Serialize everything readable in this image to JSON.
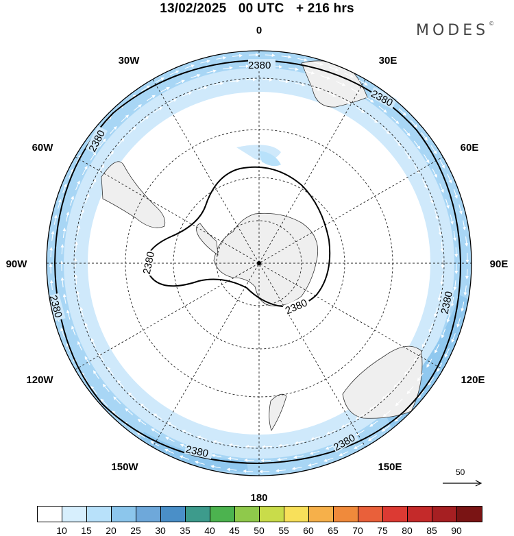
{
  "header": {
    "date": "13/02/2025",
    "time": "00 UTC",
    "lead": "+ 216 hrs"
  },
  "logo": {
    "text": "MODES",
    "mark": "©"
  },
  "map": {
    "projection": "south-polar-stereographic",
    "longitude_labels": {
      "lon_0": "0",
      "lon_30e": "30E",
      "lon_60e": "60E",
      "lon_90e": "90E",
      "lon_120e": "120E",
      "lon_150e": "150E",
      "lon_180": "180",
      "lon_150w": "150W",
      "lon_120w": "120W",
      "lon_90w": "90W",
      "lon_60w": "60W",
      "lon_30w": "30W"
    },
    "contour_value": "2380",
    "land_color": "#efefef",
    "coastline_color": "#333333",
    "wind_shading_colors": [
      "#cfe9fb",
      "#a8d6f5",
      "#90c8ef"
    ]
  },
  "vector_reference": {
    "value": "50",
    "icon": "arrow-right-icon"
  },
  "colorbar": {
    "ticks": [
      "10",
      "15",
      "20",
      "25",
      "30",
      "35",
      "40",
      "45",
      "50",
      "55",
      "60",
      "65",
      "70",
      "75",
      "80",
      "85",
      "90"
    ],
    "colors": [
      "#ffffff",
      "#d7effd",
      "#b8e1fa",
      "#8cc6ec",
      "#6ea8da",
      "#4a8fc8",
      "#3d9b8c",
      "#4cb34f",
      "#8fc94b",
      "#c9dc4a",
      "#f8e05a",
      "#f6b04a",
      "#f08a3b",
      "#e9603a",
      "#dc3a33",
      "#c42a2a",
      "#a61f22",
      "#7a1414"
    ]
  }
}
